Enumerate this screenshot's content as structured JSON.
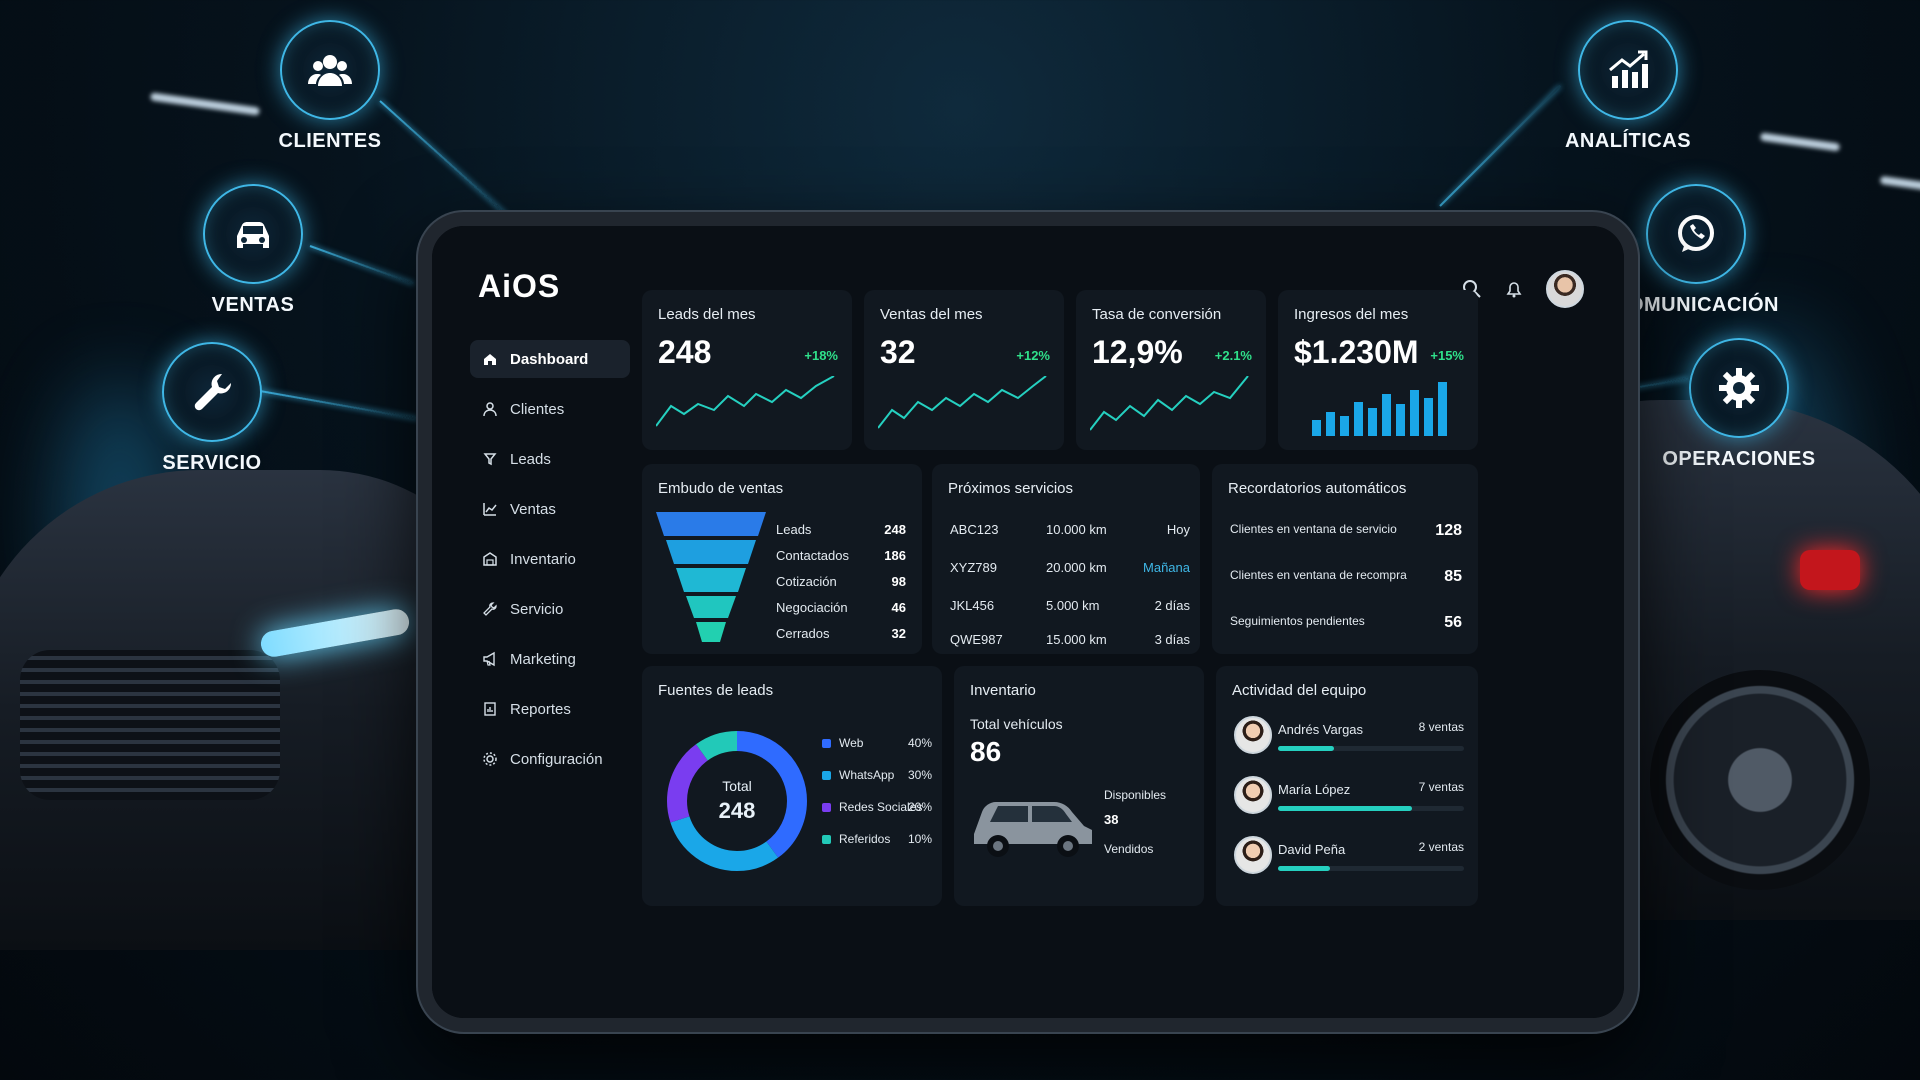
{
  "nodes": {
    "clientes": "CLIENTES",
    "ventas": "VENTAS",
    "servicio": "SERVICIO",
    "analiticas": "ANALÍTICAS",
    "comunicacion": "COMUNICACIÓN",
    "operaciones": "OPERACIONES"
  },
  "app": {
    "logo": "AiOS"
  },
  "sidebar": {
    "items": [
      {
        "label": "Dashboard",
        "icon": "home-icon"
      },
      {
        "label": "Clientes",
        "icon": "user-icon"
      },
      {
        "label": "Leads",
        "icon": "leads-icon"
      },
      {
        "label": "Ventas",
        "icon": "sales-icon"
      },
      {
        "label": "Inventario",
        "icon": "inventory-icon"
      },
      {
        "label": "Servicio",
        "icon": "wrench-icon"
      },
      {
        "label": "Marketing",
        "icon": "megaphone-icon"
      },
      {
        "label": "Reportes",
        "icon": "report-icon"
      },
      {
        "label": "Configuración",
        "icon": "gear-icon"
      }
    ]
  },
  "kpis": [
    {
      "title": "Leads del mes",
      "value": "248",
      "delta": "+18%"
    },
    {
      "title": "Ventas del mes",
      "value": "32",
      "delta": "+12%"
    },
    {
      "title": "Tasa de conversión",
      "value": "12,9%",
      "delta": "+2.1%"
    },
    {
      "title": "Ingresos del mes",
      "value": "$1.230M",
      "delta": "+15%"
    }
  ],
  "funnel": {
    "title": "Embudo de ventas",
    "rows": [
      {
        "label": "Leads",
        "value": "248"
      },
      {
        "label": "Contactados",
        "value": "186"
      },
      {
        "label": "Cotización",
        "value": "98"
      },
      {
        "label": "Negociación",
        "value": "46"
      },
      {
        "label": "Cerrados",
        "value": "32"
      }
    ]
  },
  "services": {
    "title": "Próximos servicios",
    "rows": [
      {
        "plate": "ABC123",
        "km": "10.000 km",
        "when": "Hoy"
      },
      {
        "plate": "XYZ789",
        "km": "20.000 km",
        "when": "Mañana"
      },
      {
        "plate": "JKL456",
        "km": "5.000 km",
        "when": "2 días"
      },
      {
        "plate": "QWE987",
        "km": "15.000 km",
        "when": "3 días"
      }
    ]
  },
  "reminders": {
    "title": "Recordatorios automáticos",
    "rows": [
      {
        "label": "Clientes en ventana de servicio",
        "value": "128"
      },
      {
        "label": "Clientes en ventana de recompra",
        "value": "85"
      },
      {
        "label": "Seguimientos pendientes",
        "value": "56"
      }
    ]
  },
  "sources": {
    "title": "Fuentes de leads",
    "total_label": "Total",
    "total_value": "248",
    "items": [
      {
        "label": "Web",
        "pct": "40%",
        "color": "#2f6bff"
      },
      {
        "label": "WhatsApp",
        "pct": "30%",
        "color": "#1aa7e8"
      },
      {
        "label": "Redes Sociales",
        "pct": "20%",
        "color": "#7a3df0"
      },
      {
        "label": "Referidos",
        "pct": "10%",
        "color": "#22c9b8"
      }
    ]
  },
  "inventory": {
    "title": "Inventario",
    "total_label": "Total vehículos",
    "total_value": "86",
    "available_label": "Disponibles",
    "available_value": "38",
    "sold_label": "Vendidos"
  },
  "team": {
    "title": "Actividad del equipo",
    "members": [
      {
        "name": "Andrés Vargas",
        "sales": "8 ventas",
        "progress": 0.3
      },
      {
        "name": "María López",
        "sales": "7 ventas",
        "progress": 0.72
      },
      {
        "name": "David Peña",
        "sales": "2 ventas",
        "progress": 0.28
      }
    ]
  },
  "colors": {
    "accent": "#3fb7e6",
    "positive": "#2fe08a",
    "teal": "#25d0c0"
  }
}
